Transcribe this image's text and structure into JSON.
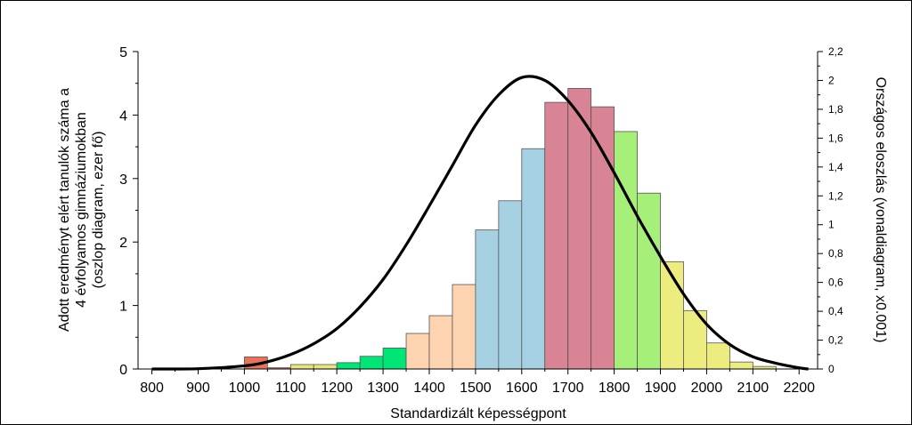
{
  "chart_data": {
    "type": "bar",
    "xlabel": "Standardizált képességpont",
    "ylabel_left_lines": [
      "Adott eredményt elért tanulók száma a",
      "4 évfolyamos gimnáziumokban",
      "(oszlop diagram, ezer fő)"
    ],
    "ylabel_right": "Országos eloszlás (vonaldiagram, x0.001)",
    "xlim": [
      770,
      2240
    ],
    "ylim_left": [
      0,
      5
    ],
    "ylim_right": [
      0,
      2.2
    ],
    "x_ticks": [
      "800",
      "900",
      "1000",
      "1100",
      "1200",
      "1300",
      "1400",
      "1500",
      "1600",
      "1700",
      "1800",
      "1900",
      "2000",
      "2100",
      "2200"
    ],
    "y_left_ticks": [
      "0",
      "1",
      "2",
      "3",
      "4",
      "5"
    ],
    "y_right_ticks": [
      "0",
      "0,2",
      "0,4",
      "0,6",
      "0,8",
      "1",
      "1,2",
      "1,4",
      "1,6",
      "1,8",
      "2",
      "2,2"
    ],
    "bin_width": 50,
    "bars": [
      {
        "x": 800,
        "value": 0.0,
        "color": "#f4b183"
      },
      {
        "x": 850,
        "value": 0.0,
        "color": "#f4b183"
      },
      {
        "x": 900,
        "value": 0.0,
        "color": "#f4b183"
      },
      {
        "x": 950,
        "value": 0.0,
        "color": "#f4b183"
      },
      {
        "x": 1000,
        "value": 0.19,
        "color": "#e6735a"
      },
      {
        "x": 1050,
        "value": 0.02,
        "color": "#e6735a"
      },
      {
        "x": 1100,
        "value": 0.07,
        "color": "#ebe67a"
      },
      {
        "x": 1150,
        "value": 0.07,
        "color": "#ebe67a"
      },
      {
        "x": 1200,
        "value": 0.1,
        "color": "#00e676"
      },
      {
        "x": 1250,
        "value": 0.2,
        "color": "#00e676"
      },
      {
        "x": 1300,
        "value": 0.33,
        "color": "#00e676"
      },
      {
        "x": 1350,
        "value": 0.56,
        "color": "#fdd3b0"
      },
      {
        "x": 1400,
        "value": 0.84,
        "color": "#fdd3b0"
      },
      {
        "x": 1450,
        "value": 1.33,
        "color": "#fdd3b0"
      },
      {
        "x": 1500,
        "value": 2.19,
        "color": "#a6d1e3"
      },
      {
        "x": 1550,
        "value": 2.65,
        "color": "#a6d1e3"
      },
      {
        "x": 1600,
        "value": 3.47,
        "color": "#a6d1e3"
      },
      {
        "x": 1650,
        "value": 4.2,
        "color": "#d98494"
      },
      {
        "x": 1700,
        "value": 4.42,
        "color": "#d98494"
      },
      {
        "x": 1750,
        "value": 4.13,
        "color": "#d98494"
      },
      {
        "x": 1800,
        "value": 3.74,
        "color": "#a6ef78"
      },
      {
        "x": 1850,
        "value": 2.77,
        "color": "#a6ef78"
      },
      {
        "x": 1900,
        "value": 1.69,
        "color": "#edec7e"
      },
      {
        "x": 1950,
        "value": 0.92,
        "color": "#edec7e"
      },
      {
        "x": 2000,
        "value": 0.41,
        "color": "#edec7e"
      },
      {
        "x": 2050,
        "value": 0.11,
        "color": "#edec7e"
      },
      {
        "x": 2100,
        "value": 0.04,
        "color": "#edec7e"
      },
      {
        "x": 2150,
        "value": 0.0,
        "color": "#edec7e"
      }
    ],
    "series": [
      {
        "type": "line",
        "axis": "right",
        "color": "#000000",
        "points": [
          [
            800,
            0.0
          ],
          [
            900,
            0.002
          ],
          [
            1000,
            0.022
          ],
          [
            1050,
            0.05
          ],
          [
            1100,
            0.1
          ],
          [
            1150,
            0.175
          ],
          [
            1200,
            0.28
          ],
          [
            1250,
            0.43
          ],
          [
            1300,
            0.62
          ],
          [
            1350,
            0.86
          ],
          [
            1400,
            1.13
          ],
          [
            1450,
            1.41
          ],
          [
            1500,
            1.69
          ],
          [
            1550,
            1.9
          ],
          [
            1600,
            2.02
          ],
          [
            1650,
            2.0
          ],
          [
            1700,
            1.86
          ],
          [
            1750,
            1.64
          ],
          [
            1800,
            1.36
          ],
          [
            1850,
            1.06
          ],
          [
            1900,
            0.78
          ],
          [
            1950,
            0.52
          ],
          [
            2000,
            0.31
          ],
          [
            2050,
            0.17
          ],
          [
            2100,
            0.085
          ],
          [
            2150,
            0.04
          ],
          [
            2200,
            0.008
          ],
          [
            2220,
            0.0
          ]
        ]
      }
    ],
    "colors": {
      "frame": "#000000",
      "curve": "#000000"
    }
  }
}
